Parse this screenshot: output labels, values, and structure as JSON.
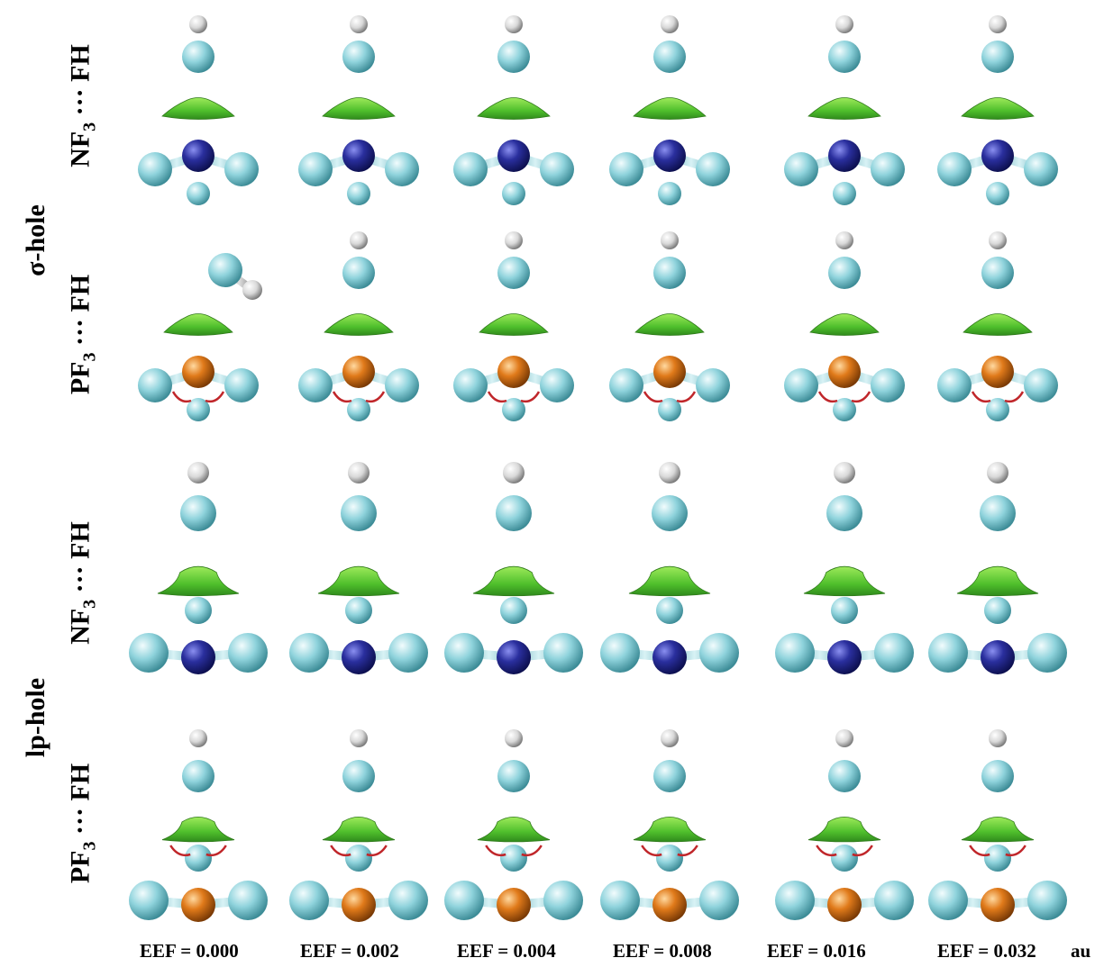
{
  "groups": [
    {
      "label": "σ-hole"
    },
    {
      "label": "lp-hole"
    }
  ],
  "rows": [
    {
      "molecule": "NF",
      "subscript": "3",
      "partner": " ··· FH",
      "central_atom": "N",
      "hole": "sigma"
    },
    {
      "molecule": "PF",
      "subscript": "3",
      "partner": " ··· FH",
      "central_atom": "P",
      "hole": "sigma"
    },
    {
      "molecule": "NF",
      "subscript": "3",
      "partner": " ··· FH",
      "central_atom": "N",
      "hole": "lp"
    },
    {
      "molecule": "PF",
      "subscript": "3",
      "partner": " ··· FH",
      "central_atom": "P",
      "hole": "lp"
    }
  ],
  "columns": [
    {
      "label": "EEF = 0.000"
    },
    {
      "label": "EEF = 0.002"
    },
    {
      "label": "EEF = 0.004"
    },
    {
      "label": "EEF = 0.008"
    },
    {
      "label": "EEF = 0.016"
    },
    {
      "label": "EEF = 0.032"
    }
  ],
  "unit": "au",
  "colors": {
    "nitrogen": "#2a2f9e",
    "phosphorus": "#e07a1a",
    "fluorine": "#8fd3dc",
    "hydrogen": "#e8e8e8",
    "isosurface_green": "#5fcc3a",
    "isosurface_red": "#c0262a"
  }
}
